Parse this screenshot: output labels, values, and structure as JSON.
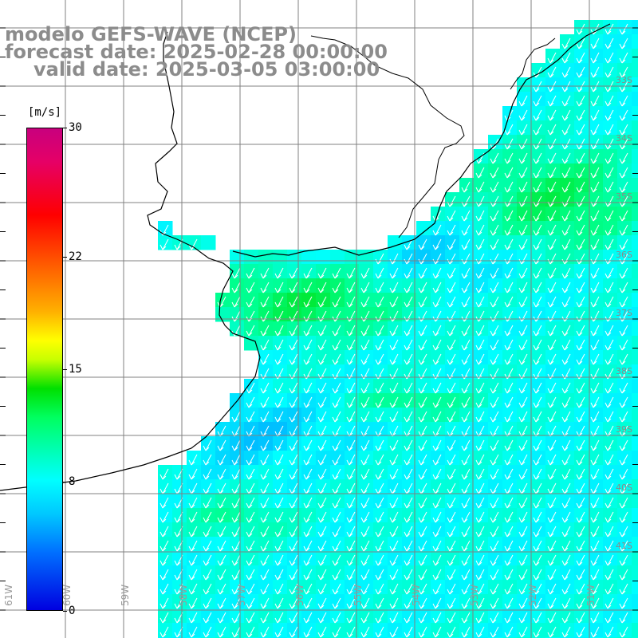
{
  "title": {
    "line1": "modelo GEFS-WAVE (NCEP)",
    "line2": "forecast date: 2025-02-28 00:00:00",
    "line3": "valid date: 2025-03-05 03:00:00"
  },
  "colorbar": {
    "unit": "[m/s]",
    "ticks": [
      "30",
      "22",
      "15",
      "8",
      "0"
    ],
    "tick_values": [
      30,
      22,
      15,
      8,
      0
    ],
    "range": [
      0,
      30
    ],
    "colors": [
      "#0000e0",
      "#0070ff",
      "#00c8ff",
      "#00ffff",
      "#00ff60",
      "#00e000",
      "#c8ff00",
      "#ffff00",
      "#ffb000",
      "#ff6a00",
      "#ff0000",
      "#e60066",
      "#c8007e"
    ]
  },
  "map": {
    "lon_labels": [
      "61W",
      "60W",
      "59W",
      "58W",
      "57W",
      "56W",
      "55W",
      "54W",
      "53W",
      "52W",
      "51W"
    ],
    "lat_labels": [
      "33S",
      "34S",
      "35S",
      "36S",
      "37S",
      "38S",
      "39S",
      "40S",
      "41S"
    ],
    "wind_direction": "from northeast",
    "colors": {
      "land": "#ffffff",
      "coast": "#000000",
      "grid": "#808080",
      "arrow": "#ffffff"
    }
  }
}
